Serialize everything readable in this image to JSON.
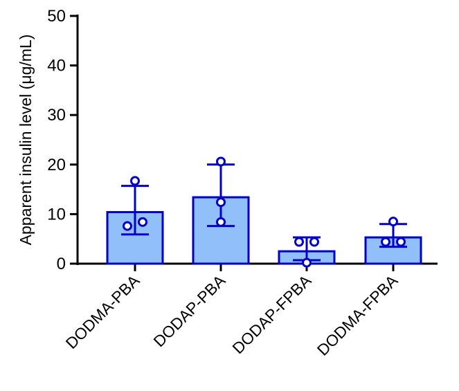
{
  "chart_data": {
    "type": "bar",
    "title": "",
    "xlabel": "",
    "ylabel": "Apparent insulin level (μg/mL)",
    "ylim": [
      0,
      50
    ],
    "yticks": [
      0,
      10,
      20,
      30,
      40,
      50
    ],
    "grid": false,
    "categories": [
      "DODMA-PBA",
      "DODAP-PBA",
      "DODAP-FPBA",
      "DODMA-FPBA"
    ],
    "values": [
      10.4,
      13.4,
      2.5,
      5.3
    ],
    "error_upper": [
      15.7,
      20.0,
      5.3,
      8.0
    ],
    "error_lower": [
      5.9,
      7.6,
      0.7,
      3.4
    ],
    "points": [
      [
        16.7,
        7.6,
        8.4
      ],
      [
        20.6,
        12.4,
        8.4
      ],
      [
        4.4,
        4.4,
        0.2
      ],
      [
        8.5,
        4.4,
        4.4
      ]
    ],
    "colors": {
      "bar_fill": "#90BFF9",
      "bar_stroke": "#0000C8",
      "axis": "#000000"
    }
  }
}
